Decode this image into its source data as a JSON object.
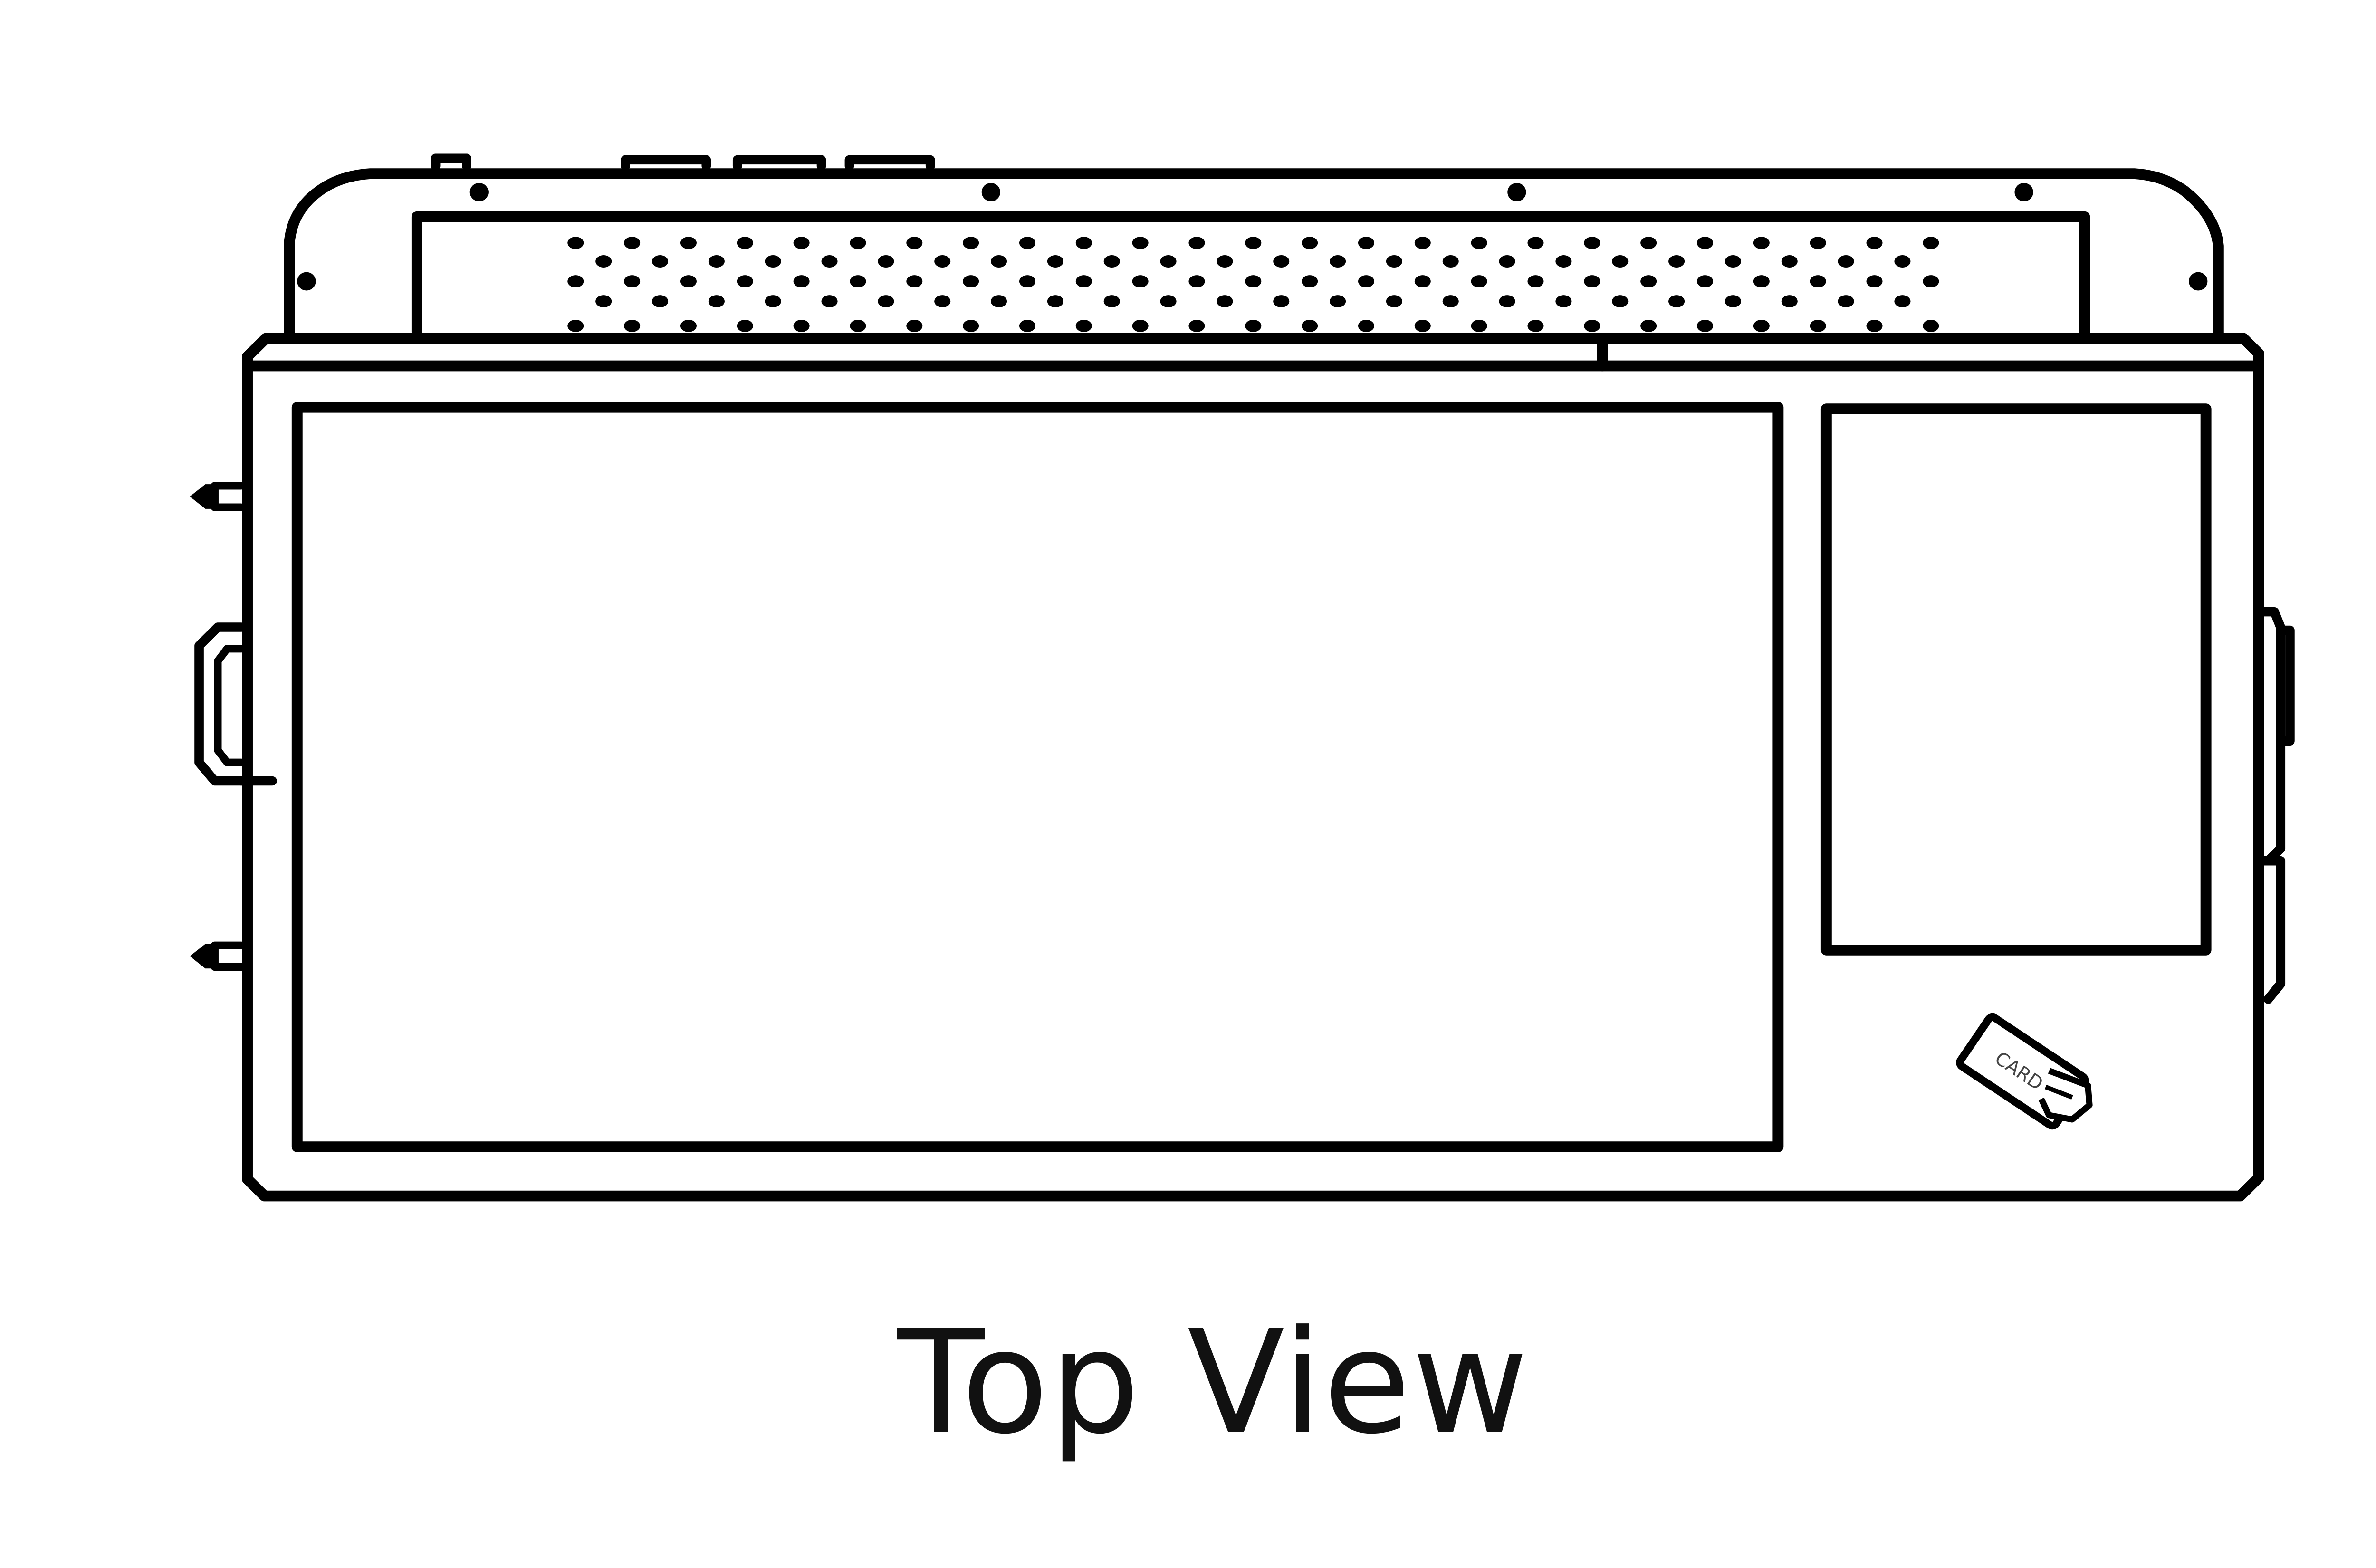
{
  "caption": "Top View",
  "device": {
    "stroke_color": "#000000",
    "background_color": "#ffffff",
    "card_label": "CARD",
    "icons": [
      "card-tap-icon"
    ]
  }
}
